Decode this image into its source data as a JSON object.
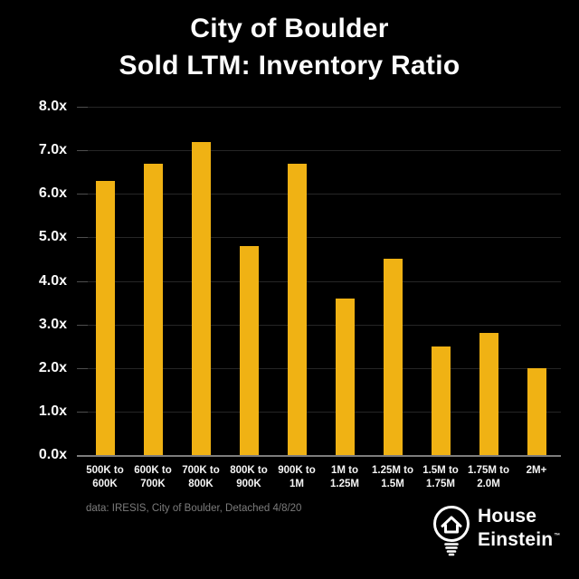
{
  "title": {
    "line1": "City of Boulder",
    "line2": "Sold LTM: Inventory Ratio"
  },
  "chart_data": {
    "type": "bar",
    "title": "City of Boulder Sold LTM: Inventory Ratio",
    "categories": [
      "500K to 600K",
      "600K to 700K",
      "700K to 800K",
      "800K to 900K",
      "900K to 1M",
      "1M to 1.25M",
      "1.25M to 1.5M",
      "1.5M to 1.75M",
      "1.75M to 2.0M",
      "2M+"
    ],
    "categories_two_line": [
      [
        "500K to",
        "600K"
      ],
      [
        "600K to",
        "700K"
      ],
      [
        "700K to",
        "800K"
      ],
      [
        "800K to",
        "900K"
      ],
      [
        "900K to",
        "1M"
      ],
      [
        "1M to",
        "1.25M"
      ],
      [
        "1.25M to",
        "1.5M"
      ],
      [
        "1.5M to",
        "1.75M"
      ],
      [
        "1.75M to",
        "2.0M"
      ],
      [
        "2M+",
        ""
      ]
    ],
    "values": [
      6.3,
      6.7,
      7.2,
      4.8,
      6.7,
      3.6,
      4.5,
      2.5,
      2.8,
      2.0
    ],
    "xlabel": "",
    "ylabel": "",
    "ylim": [
      0,
      8
    ],
    "ytick_step": 1,
    "ytick_labels": [
      "0.0x",
      "1.0x",
      "2.0x",
      "3.0x",
      "4.0x",
      "5.0x",
      "6.0x",
      "7.0x",
      "8.0x"
    ],
    "grid": true,
    "legend_position": "none",
    "bar_color": "#F0B214"
  },
  "footer": {
    "source_note": "data: IRESIS, City of Boulder, Detached 4/8/20"
  },
  "logo": {
    "line1": "House",
    "line2": "Einstein",
    "tm": "TM",
    "icon": "lightbulb-house-icon"
  },
  "colors": {
    "background": "#000000",
    "bar": "#F0B214",
    "gridline": "#262626",
    "axis_line": "#7D7D7D",
    "text": "#FDFDFD",
    "muted_text": "#7C7C7C"
  }
}
